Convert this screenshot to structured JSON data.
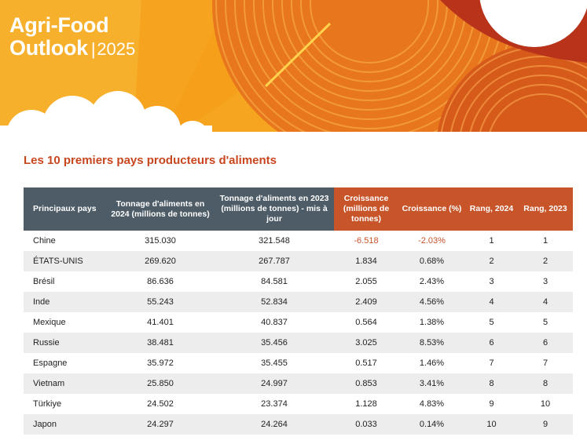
{
  "header": {
    "brand_line1": "Agri-Food",
    "brand_line2": "Outlook",
    "brand_separator": "|",
    "brand_year": "2025",
    "colors": {
      "orange": "#f5a623",
      "dark_orange": "#d9531e",
      "white": "#ffffff"
    }
  },
  "section": {
    "title": "Les 10 premiers pays producteurs d'aliments"
  },
  "table": {
    "headers": [
      "Principaux pays",
      "Tonnage d'aliments en 2024 (millions de tonnes)",
      "Tonnage d'aliments en 2023 (millions de tonnes) - mis à jour",
      "Croissance (millions de tonnes)",
      "Croissance (%)",
      "Rang, 2024",
      "Rang, 2023"
    ],
    "rows": [
      {
        "country": "Chine",
        "t2024": "315.030",
        "t2023": "321.548",
        "growth": "-6.518",
        "growth_pct": "-2.03%",
        "rank2024": "1",
        "rank2023": "1"
      },
      {
        "country": "ÉTATS-UNIS",
        "t2024": "269.620",
        "t2023": "267.787",
        "growth": "1.834",
        "growth_pct": "0.68%",
        "rank2024": "2",
        "rank2023": "2"
      },
      {
        "country": "Brésil",
        "t2024": "86.636",
        "t2023": "84.581",
        "growth": "2.055",
        "growth_pct": "2.43%",
        "rank2024": "3",
        "rank2023": "3"
      },
      {
        "country": "Inde",
        "t2024": "55.243",
        "t2023": "52.834",
        "growth": "2.409",
        "growth_pct": "4.56%",
        "rank2024": "4",
        "rank2023": "4"
      },
      {
        "country": "Mexique",
        "t2024": "41.401",
        "t2023": "40.837",
        "growth": "0.564",
        "growth_pct": "1.38%",
        "rank2024": "5",
        "rank2023": "5"
      },
      {
        "country": "Russie",
        "t2024": "38.481",
        "t2023": "35.456",
        "growth": "3.025",
        "growth_pct": "8.53%",
        "rank2024": "6",
        "rank2023": "6"
      },
      {
        "country": "Espagne",
        "t2024": "35.972",
        "t2023": "35.455",
        "growth": "0.517",
        "growth_pct": "1.46%",
        "rank2024": "7",
        "rank2023": "7"
      },
      {
        "country": "Vietnam",
        "t2024": "25.850",
        "t2023": "24.997",
        "growth": "0.853",
        "growth_pct": "3.41%",
        "rank2024": "8",
        "rank2023": "8"
      },
      {
        "country": "Türkiye",
        "t2024": "24.502",
        "t2023": "23.374",
        "growth": "1.128",
        "growth_pct": "4.83%",
        "rank2024": "9",
        "rank2023": "10"
      },
      {
        "country": "Japon",
        "t2024": "24.297",
        "t2023": "24.264",
        "growth": "0.033",
        "growth_pct": "0.14%",
        "rank2024": "10",
        "rank2023": "9"
      }
    ]
  }
}
